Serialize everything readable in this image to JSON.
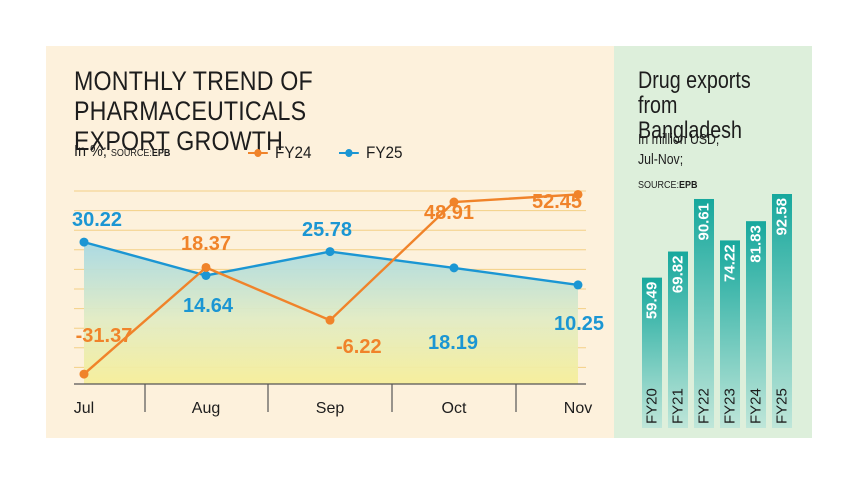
{
  "left": {
    "title_line1": "MONTHLY TREND OF PHARMACEUTICALS",
    "title_line2": "EXPORT GROWTH",
    "unit": "In %;",
    "source_label": "SOURCE:",
    "source_value": "EPB"
  },
  "right": {
    "title_line1": "Drug exports",
    "title_line2": "from Bangladesh",
    "unit": "In million USD;",
    "period": "Jul-Nov;",
    "source_label": "SOURCE:",
    "source_value": "EPB"
  },
  "colors": {
    "fy24": "#f0832a",
    "fy25": "#1b96d3",
    "bar_top": "#17a89d",
    "bar_bottom": "#bfe6d9",
    "left_bg": "#fdf1dc",
    "right_bg": "#ddefdb"
  },
  "chart_data": [
    {
      "type": "line",
      "title": "MONTHLY TREND OF PHARMACEUTICALS EXPORT GROWTH",
      "categories": [
        "Jul",
        "Aug",
        "Sep",
        "Oct",
        "Nov"
      ],
      "series": [
        {
          "name": "FY24",
          "values": [
            -31.37,
            18.37,
            -6.22,
            48.91,
            52.45
          ]
        },
        {
          "name": "FY25",
          "values": [
            30.22,
            14.64,
            25.78,
            18.19,
            10.25
          ]
        }
      ],
      "ylim": [
        -36,
        62
      ],
      "grid": true,
      "legend": "top"
    },
    {
      "type": "bar",
      "title": "Drug exports from Bangladesh",
      "categories": [
        "FY20",
        "FY21",
        "FY22",
        "FY23",
        "FY24",
        "FY25"
      ],
      "values": [
        59.49,
        69.82,
        90.61,
        74.22,
        81.83,
        92.58
      ],
      "ylim": [
        0,
        92.58
      ]
    }
  ]
}
